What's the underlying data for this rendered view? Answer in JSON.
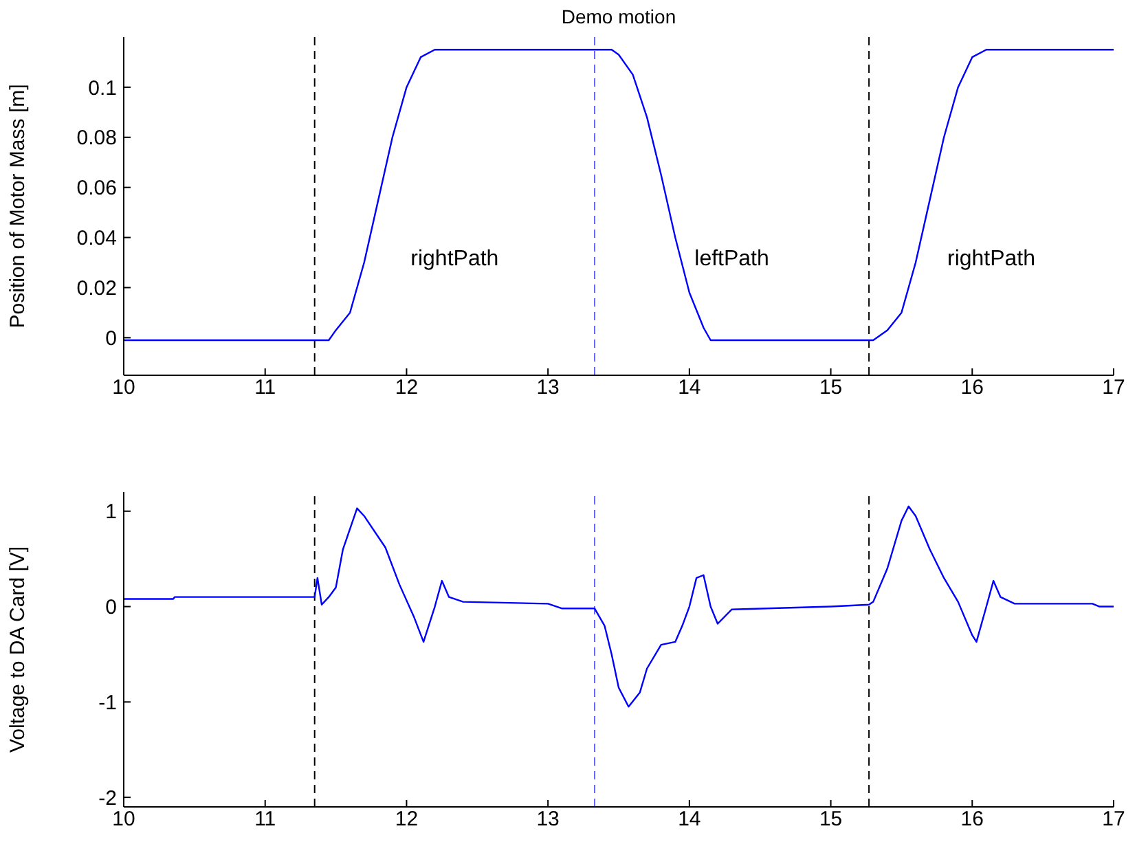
{
  "chart_data": [
    {
      "type": "line",
      "title": "Demo motion",
      "ylabel": "Position of Motor Mass [m]",
      "x": [
        10,
        11.35,
        11.45,
        11.5,
        11.6,
        11.7,
        11.8,
        11.9,
        12.0,
        12.1,
        12.2,
        13.45,
        13.5,
        13.6,
        13.7,
        13.8,
        13.9,
        14.0,
        14.1,
        14.15,
        15.3,
        15.4,
        15.5,
        15.6,
        15.7,
        15.8,
        15.9,
        16.0,
        16.1,
        17
      ],
      "series": [
        {
          "color": "#0000ff",
          "values": [
            -0.001,
            -0.001,
            -0.001,
            0.003,
            0.01,
            0.03,
            0.055,
            0.08,
            0.1,
            0.112,
            0.115,
            0.115,
            0.113,
            0.105,
            0.088,
            0.065,
            0.04,
            0.018,
            0.004,
            -0.001,
            -0.001,
            0.003,
            0.01,
            0.03,
            0.055,
            0.08,
            0.1,
            0.112,
            0.115,
            0.115
          ]
        }
      ],
      "xlim": [
        10,
        17
      ],
      "xticks": [
        10,
        11,
        12,
        13,
        14,
        15,
        16,
        17
      ],
      "ylim": [
        -0.015,
        0.12
      ],
      "yticks": [
        0,
        0.02,
        0.04,
        0.06,
        0.08,
        0.1
      ],
      "grid": false,
      "legend": false,
      "marker": "none",
      "line_style": "solid",
      "ref_lines": [
        {
          "axis": "x",
          "value": 11.35,
          "color": "#000000",
          "line_style": "dashed"
        },
        {
          "axis": "x",
          "value": 13.33,
          "color": "#6666ff",
          "line_style": "dashed"
        },
        {
          "axis": "x",
          "value": 15.27,
          "color": "#000000",
          "line_style": "dashed"
        }
      ],
      "annotations": [
        "rightPath",
        "leftPath",
        "rightPath"
      ]
    },
    {
      "type": "line",
      "ylabel": "Voltage to DA Card [V]",
      "x": [
        10,
        10.35,
        10.36,
        11.35,
        11.37,
        11.4,
        11.45,
        11.5,
        11.55,
        11.65,
        11.7,
        11.85,
        11.95,
        12.05,
        12.12,
        12.2,
        12.25,
        12.3,
        12.4,
        13.0,
        13.1,
        13.33,
        13.4,
        13.45,
        13.5,
        13.57,
        13.65,
        13.7,
        13.8,
        13.9,
        13.95,
        14.0,
        14.05,
        14.1,
        14.15,
        14.2,
        14.3,
        15.0,
        15.27,
        15.3,
        15.4,
        15.5,
        15.55,
        15.6,
        15.7,
        15.8,
        15.9,
        16.0,
        16.03,
        16.1,
        16.15,
        16.2,
        16.3,
        16.85,
        16.9,
        17
      ],
      "series": [
        {
          "color": "#0000ff",
          "values": [
            0.08,
            0.08,
            0.1,
            0.1,
            0.3,
            0.02,
            0.1,
            0.2,
            0.6,
            1.03,
            0.95,
            0.62,
            0.23,
            -0.1,
            -0.37,
            0.0,
            0.27,
            0.1,
            0.05,
            0.03,
            -0.02,
            -0.02,
            -0.2,
            -0.5,
            -0.85,
            -1.05,
            -0.9,
            -0.65,
            -0.4,
            -0.37,
            -0.2,
            0.0,
            0.3,
            0.33,
            0.0,
            -0.18,
            -0.03,
            0.0,
            0.02,
            0.05,
            0.4,
            0.9,
            1.05,
            0.95,
            0.6,
            0.3,
            0.05,
            -0.3,
            -0.37,
            0.0,
            0.27,
            0.1,
            0.03,
            0.03,
            0.0,
            0.0
          ]
        }
      ],
      "xlim": [
        10,
        17
      ],
      "xticks": [
        10,
        11,
        12,
        13,
        14,
        15,
        16,
        17
      ],
      "ylim": [
        -2.1,
        1.2
      ],
      "yticks": [
        -2,
        -1,
        0,
        1
      ],
      "grid": false,
      "legend": false,
      "marker": "none",
      "line_style": "solid",
      "ref_lines": [
        {
          "axis": "x",
          "value": 11.35,
          "color": "#000000",
          "line_style": "dashed"
        },
        {
          "axis": "x",
          "value": 13.33,
          "color": "#6666ff",
          "line_style": "dashed"
        },
        {
          "axis": "x",
          "value": 15.27,
          "color": "#000000",
          "line_style": "dashed"
        }
      ]
    }
  ]
}
